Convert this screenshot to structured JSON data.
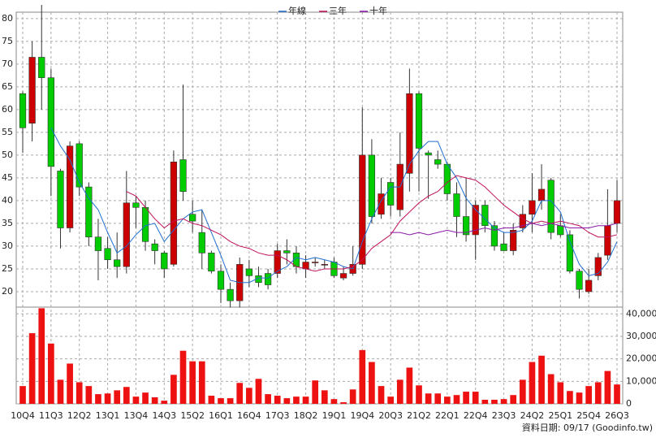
{
  "chart_data": {
    "type": "candlestick",
    "categories": [
      "10Q4",
      null,
      null,
      "11Q3",
      null,
      null,
      "12Q2",
      null,
      null,
      "13Q1",
      null,
      null,
      "13Q4",
      null,
      null,
      "14Q3",
      null,
      null,
      "15Q2",
      null,
      null,
      "16Q1",
      null,
      null,
      "16Q4",
      null,
      null,
      "17Q3",
      null,
      null,
      "18Q2",
      null,
      null,
      "19Q1",
      null,
      null,
      "19Q4",
      null,
      null,
      "20Q3",
      null,
      null,
      "21Q2",
      null,
      null,
      "22Q1",
      null,
      null,
      "22Q4",
      null,
      null,
      "23Q3",
      null,
      null,
      "24Q2",
      null,
      null,
      "25Q1",
      null,
      null,
      "25Q4",
      null,
      null,
      "26Q3"
    ],
    "open": [
      63.5,
      57,
      71.5,
      67,
      46.5,
      34,
      52.5,
      43,
      32,
      29.5,
      27,
      25.5,
      39.5,
      38.5,
      30.5,
      28.5,
      26,
      49,
      37,
      33,
      28.5,
      24.5,
      20.5,
      18,
      25,
      23.5,
      24,
      24,
      29,
      28.5,
      25,
      26.5,
      26,
      26.5,
      23,
      24,
      26,
      50,
      37,
      44,
      38,
      46,
      63.5,
      50.5,
      49,
      48,
      41.5,
      36.5,
      32.5,
      39,
      34.5,
      30.5,
      29,
      34,
      37,
      40,
      44.5,
      34.5,
      32.5,
      24.5,
      20,
      23.5,
      28,
      35
    ],
    "high": [
      64,
      75,
      83,
      69,
      47,
      53,
      53,
      44,
      36,
      32,
      33,
      46.5,
      41,
      40,
      31.5,
      29,
      51,
      65.5,
      40,
      38,
      29,
      26,
      22,
      27.5,
      27,
      25.5,
      25,
      30.5,
      31.5,
      30,
      28,
      27.5,
      27,
      27.5,
      25.5,
      30,
      60.5,
      53.5,
      45,
      45,
      55,
      69,
      64,
      51,
      51,
      48.5,
      44,
      45,
      40,
      40,
      35.5,
      33,
      35,
      39,
      46,
      48,
      45,
      37,
      33.5,
      25,
      25,
      28.5,
      42.5,
      44.5
    ],
    "low": [
      50.5,
      53,
      60,
      41,
      29.5,
      33,
      41,
      30,
      22.5,
      25,
      23,
      24,
      34,
      29,
      26,
      23,
      25.5,
      40,
      33,
      25,
      24,
      17.5,
      16.5,
      16.5,
      21,
      21,
      20.5,
      23,
      26,
      24,
      23,
      25.5,
      25,
      23,
      22.5,
      23.5,
      25,
      35,
      36,
      36.5,
      36.5,
      42,
      42,
      40.4,
      47,
      40,
      32,
      31,
      27,
      33,
      29,
      29,
      28,
      33,
      33,
      38,
      31.5,
      32,
      24,
      18.5,
      19.5,
      22.5,
      27,
      33
    ],
    "close": [
      56,
      71.5,
      67,
      47.5,
      34,
      52,
      43,
      32,
      29,
      27,
      25.5,
      39.5,
      38.5,
      31,
      29,
      25,
      48.5,
      42,
      35.5,
      28.5,
      24.5,
      20.5,
      18,
      26,
      23.5,
      22,
      21.5,
      29,
      28.5,
      25.5,
      26.5,
      26.5,
      26,
      23.5,
      24,
      26,
      50,
      36.5,
      41.5,
      39,
      48,
      63.5,
      51.5,
      50,
      48,
      41.5,
      36.5,
      32.5,
      39,
      34.5,
      30,
      29,
      33.5,
      37,
      40,
      42.5,
      33,
      32.5,
      24.5,
      20.5,
      22.5,
      27.5,
      34.5,
      40
    ],
    "up_color": "#cc0000",
    "down_color": "#00cc00",
    "ylim": [
      16.6,
      81.4
    ],
    "yticks": [
      20,
      25,
      30,
      35,
      40,
      45,
      50,
      55,
      60,
      65,
      70,
      75,
      80
    ],
    "grid": true,
    "series": [
      {
        "name": "年線",
        "color": "#1f6fd0",
        "values": [
          null,
          null,
          null,
          56,
          52,
          49,
          44,
          40.5,
          38,
          33,
          28.5,
          30,
          32.5,
          34.5,
          35,
          31,
          33.5,
          36,
          37.5,
          38,
          33,
          28,
          22.5,
          22,
          22,
          23,
          23,
          24.5,
          25.5,
          27.5,
          27,
          27.5,
          27,
          26.5,
          25.5,
          25,
          31,
          36,
          40,
          43,
          43,
          48,
          51,
          53,
          53,
          48,
          45,
          40.5,
          38,
          36,
          34,
          33,
          33,
          33.5,
          35.5,
          40,
          40,
          37.5,
          31,
          26,
          23.5,
          24,
          26.5,
          31
        ]
      },
      {
        "name": "三年",
        "color": "#c0105a",
        "values": [
          null,
          null,
          null,
          null,
          null,
          null,
          null,
          null,
          null,
          null,
          null,
          42,
          41,
          38.5,
          36,
          34,
          35.5,
          36,
          35,
          34.5,
          33.5,
          32.5,
          31,
          30,
          29.5,
          28.5,
          28,
          28,
          27,
          25.5,
          25,
          24.5,
          25,
          25,
          25,
          25.5,
          27,
          29.5,
          31,
          32.5,
          35.5,
          37.5,
          39.5,
          41,
          42,
          44,
          45.5,
          45,
          44.5,
          43,
          41,
          39,
          37.5,
          36,
          35,
          35.5,
          35,
          35.5,
          35,
          34.5,
          33,
          32,
          32,
          32.5
        ]
      },
      {
        "name": "十年",
        "color": "#8a1aa8",
        "values": [
          null,
          null,
          null,
          null,
          null,
          null,
          null,
          null,
          null,
          null,
          null,
          null,
          null,
          null,
          null,
          null,
          null,
          null,
          null,
          null,
          null,
          null,
          null,
          null,
          null,
          null,
          null,
          null,
          null,
          null,
          null,
          null,
          null,
          null,
          null,
          null,
          null,
          null,
          null,
          33,
          33,
          32.5,
          33,
          32.5,
          33,
          33.5,
          33,
          33,
          33.5,
          34,
          33.5,
          34,
          34,
          34.5,
          35,
          34.5,
          35,
          34.5,
          34,
          34,
          34,
          34.5,
          34.5,
          35
        ]
      }
    ],
    "volume": {
      "color": "#ee1111",
      "values": [
        7900,
        31400,
        42500,
        26800,
        10700,
        17900,
        9600,
        7900,
        4300,
        4600,
        6000,
        7500,
        3200,
        5000,
        2900,
        1400,
        12900,
        23600,
        18900,
        18900,
        3600,
        2500,
        2500,
        9300,
        7100,
        11100,
        4300,
        3600,
        2500,
        3200,
        3200,
        10400,
        6000,
        2100,
        700,
        6400,
        23900,
        18600,
        7900,
        3200,
        10700,
        16100,
        8200,
        4600,
        4600,
        3200,
        3900,
        5400,
        5400,
        1800,
        1800,
        2100,
        3900,
        10700,
        18600,
        21400,
        13200,
        9600,
        5700,
        5000,
        7900,
        9600,
        14600,
        8600
      ],
      "ylim": [
        0,
        43000
      ],
      "yticks": [
        {
          "value": 0,
          "label": "0"
        },
        {
          "value": 10000,
          "label": "10,000"
        },
        {
          "value": 20000,
          "label": "20,000"
        },
        {
          "value": 30000,
          "label": "30,000"
        },
        {
          "value": 40000,
          "label": "40,000"
        }
      ]
    },
    "footer": "資料日期: 09/17  (Goodinfo.tw)"
  }
}
